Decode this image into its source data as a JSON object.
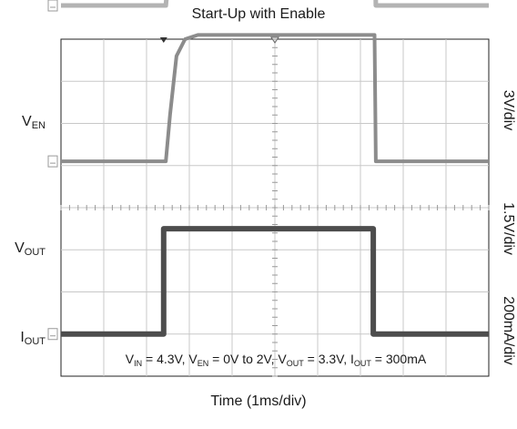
{
  "chart_data": {
    "type": "line",
    "title": "Start-Up with Enable",
    "xlabel": "Time (1ms/div)",
    "x_divisions": 10,
    "y_divisions": 8,
    "grid": true,
    "scale_labels": [
      "3V/div",
      "1.5V/div",
      "200mA/div"
    ],
    "channel_labels": [
      {
        "main": "V",
        "sub": "EN"
      },
      {
        "main": "V",
        "sub": "OUT"
      },
      {
        "main": "I",
        "sub": "OUT"
      }
    ],
    "annotation": {
      "parts": [
        {
          "t": "V"
        },
        {
          "s": "IN"
        },
        {
          "t": " = 4.3V, V"
        },
        {
          "s": "EN"
        },
        {
          "t": " = 0V to 2V, V"
        },
        {
          "s": "OUT"
        },
        {
          "t": " = 3.3V, I"
        },
        {
          "s": "OUT"
        },
        {
          "t": " = 300mA"
        }
      ]
    },
    "series": [
      {
        "name": "VEN",
        "color": "#4d4d4d",
        "x_div": [
          0,
          2.4,
          2.4,
          7.3,
          7.3,
          10
        ],
        "y_div": [
          -3.0,
          -3.0,
          -0.5,
          -0.5,
          -3.0,
          -3.0
        ]
      },
      {
        "name": "VOUT",
        "color": "#8c8c8c",
        "x_div": [
          0,
          2.45,
          2.55,
          2.7,
          2.9,
          3.2,
          7.33,
          7.36,
          10
        ],
        "y_div": [
          1.1,
          1.1,
          2.2,
          3.6,
          4.0,
          4.1,
          4.1,
          1.1,
          1.1
        ]
      },
      {
        "name": "IOUT",
        "color": "#b3b3b3",
        "x_div": [
          0,
          2.45,
          2.55,
          2.7,
          2.9,
          3.2,
          7.33,
          7.36,
          10
        ],
        "y_div": [
          4.8,
          4.8,
          6.0,
          7.0,
          7.3,
          7.3,
          7.3,
          4.8,
          4.8
        ]
      }
    ]
  }
}
